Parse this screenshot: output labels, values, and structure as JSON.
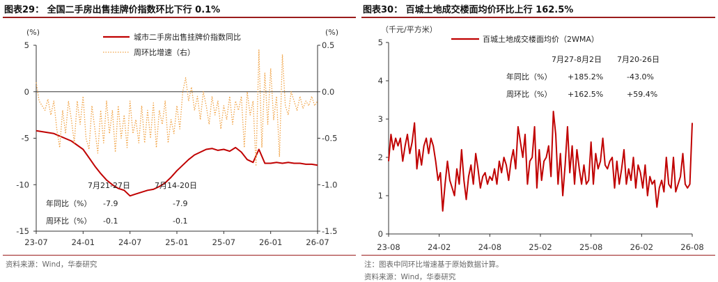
{
  "left_panel": {
    "title": "图表29：  全国二手房出售挂牌价指数环比下行 0.1%",
    "source": "资料来源：Wind，华泰研究"
  },
  "right_panel": {
    "title": "图表30：  百城土地成交楼面均价环比上行 162.5%",
    "note": "注：图表中同环比增速基于原始数据计算。",
    "source": "资料来源：Wind，华泰研究"
  },
  "chart_data": [
    {
      "type": "line",
      "x_ticks": [
        "23-07",
        "24-01",
        "24-07",
        "25-01",
        "25-07",
        "26-01",
        "26-07"
      ],
      "y_left_label": "(%)",
      "y_right_label": "(%)",
      "y_left_ticks": [
        "5",
        "0",
        "-5",
        "-10",
        "-15"
      ],
      "y_right_ticks": [
        "0.5",
        "0.0",
        "-0.5",
        "-1.0",
        "-1.5"
      ],
      "ylim_left": [
        -15,
        5
      ],
      "ylim_right": [
        -1.5,
        0.5
      ],
      "legend_position": "top-right",
      "series": [
        {
          "name": "城市二手房出售挂牌价指数同比",
          "axis": "left",
          "color": "#c00000",
          "style": "solid",
          "x": [
            0,
            6,
            12,
            16,
            18,
            20,
            22,
            24,
            26,
            28,
            30,
            32,
            34,
            36,
            38,
            40,
            42,
            44,
            46,
            48,
            50,
            52,
            54,
            56,
            58,
            60,
            62,
            64,
            66,
            68,
            70,
            72,
            74,
            76,
            78,
            80,
            82,
            84,
            86,
            88,
            90,
            92,
            94,
            96
          ],
          "values": [
            -4.2,
            -4.5,
            -5.3,
            -6.2,
            -7.1,
            -8.0,
            -8.8,
            -9.5,
            -10.0,
            -10.4,
            -10.6,
            -11.2,
            -11.0,
            -10.8,
            -10.6,
            -10.5,
            -10.2,
            -9.8,
            -9.2,
            -8.5,
            -7.9,
            -7.3,
            -6.8,
            -6.5,
            -6.2,
            -6.1,
            -6.3,
            -6.2,
            -6.4,
            -6.0,
            -6.5,
            -7.3,
            -7.6,
            -6.2,
            -7.7,
            -7.7,
            -7.6,
            -7.7,
            -7.6,
            -7.7,
            -7.7,
            -7.8,
            -7.8,
            -7.9
          ]
        },
        {
          "name": "周环比增速（右）",
          "axis": "right",
          "color": "#f0a040",
          "style": "dotted",
          "x": [
            0,
            1,
            2,
            3,
            4,
            5,
            6,
            7,
            8,
            9,
            10,
            11,
            12,
            13,
            14,
            15,
            16,
            17,
            18,
            19,
            20,
            21,
            22,
            23,
            24,
            25,
            26,
            27,
            28,
            29,
            30,
            31,
            32,
            33,
            34,
            35,
            36,
            37,
            38,
            39,
            40,
            41,
            42,
            43,
            44,
            45,
            46,
            47,
            48,
            49,
            50,
            51,
            52,
            53,
            54,
            55,
            56,
            57,
            58,
            59,
            60,
            61,
            62,
            63,
            64,
            65,
            66,
            67,
            68,
            69,
            70,
            71,
            72,
            73,
            74,
            75,
            76,
            77,
            78,
            79,
            80,
            81,
            82,
            83,
            84,
            85,
            86,
            87,
            88,
            89,
            90,
            91,
            92,
            93,
            94,
            95,
            96
          ],
          "values": [
            0.1,
            -0.1,
            -0.15,
            -0.2,
            -0.08,
            -0.25,
            -0.1,
            -0.4,
            -0.6,
            -0.2,
            -0.45,
            -0.1,
            -0.3,
            -0.55,
            -0.1,
            -0.35,
            -0.05,
            -0.5,
            -0.62,
            -0.15,
            -0.4,
            -0.66,
            -0.2,
            -0.55,
            -0.1,
            -0.45,
            -0.2,
            -0.65,
            -0.15,
            -0.5,
            -0.25,
            -0.6,
            -0.1,
            -0.45,
            -0.3,
            -0.55,
            -0.15,
            -0.55,
            -0.2,
            -0.5,
            -0.12,
            -0.6,
            -0.2,
            -0.35,
            -0.1,
            -0.55,
            -0.3,
            -0.45,
            -0.15,
            -0.4,
            0.0,
            0.15,
            -0.1,
            0.05,
            -0.2,
            -0.05,
            -0.3,
            0.0,
            -0.15,
            -0.35,
            -0.05,
            -0.25,
            -0.1,
            -0.4,
            -0.15,
            -0.3,
            -0.05,
            -0.35,
            -0.1,
            -0.2,
            -0.05,
            -0.6,
            0.0,
            -0.25,
            -0.1,
            -0.8,
            0.45,
            -0.6,
            0.2,
            -0.35,
            0.25,
            -0.3,
            -0.05,
            -0.7,
            0.4,
            -0.15,
            -0.25,
            0.0,
            -0.1,
            -0.2,
            -0.05,
            -0.18,
            -0.1,
            -0.15,
            -0.05,
            -0.15,
            -0.1
          ]
        }
      ],
      "annotation": {
        "headers": [
          "7月21-27日",
          "7月14-20日"
        ],
        "rows": [
          {
            "label": "年同比（%）",
            "values": [
              "-7.9",
              "-7.9"
            ]
          },
          {
            "label": "周环比（%）",
            "values": [
              "-0.1",
              "-0.1"
            ]
          }
        ]
      }
    },
    {
      "type": "line",
      "x_ticks": [
        "23-08",
        "24-02",
        "24-08",
        "25-02",
        "25-08",
        "26-02",
        "26-08"
      ],
      "y_label": "（千元/平方米）",
      "y_ticks": [
        "5",
        "4",
        "3",
        "2",
        "1",
        "0"
      ],
      "ylim": [
        0,
        5
      ],
      "legend_position": "top-center",
      "series": [
        {
          "name": "百城土地成交楼面均价（2WMA）",
          "color": "#c00000",
          "style": "solid",
          "values": [
            1.9,
            2.6,
            2.2,
            2.5,
            2.3,
            2.5,
            1.9,
            2.3,
            2.6,
            2.1,
            2.4,
            2.9,
            1.7,
            2.2,
            1.8,
            2.3,
            2.5,
            2.1,
            2.5,
            2.3,
            1.9,
            1.4,
            1.6,
            0.6,
            1.3,
            1.9,
            1.4,
            1.2,
            1.0,
            1.7,
            1.3,
            2.2,
            1.4,
            0.9,
            1.5,
            1.8,
            1.3,
            2.1,
            1.7,
            1.2,
            1.5,
            1.6,
            1.3,
            1.5,
            1.4,
            1.7,
            1.3,
            1.9,
            1.6,
            2.0,
            1.8,
            1.4,
            1.9,
            2.2,
            1.7,
            2.8,
            2.4,
            2.0,
            2.6,
            1.3,
            1.9,
            2.0,
            2.8,
            1.2,
            2.2,
            1.4,
            1.9,
            2.0,
            2.3,
            1.5,
            3.2,
            2.6,
            1.3,
            2.1,
            1.0,
            1.8,
            2.8,
            1.6,
            2.3,
            1.3,
            2.2,
            1.7,
            1.3,
            1.8,
            1.3,
            1.4,
            2.4,
            1.3,
            2.1,
            1.7,
            1.9,
            2.5,
            1.8,
            1.7,
            1.9,
            2.0,
            1.2,
            1.9,
            1.3,
            1.7,
            2.2,
            1.3,
            1.7,
            1.4,
            2.0,
            1.2,
            1.8,
            1.6,
            1.2,
            1.8,
            1.0,
            1.5,
            1.3,
            1.4,
            0.7,
            1.2,
            1.4,
            1.1,
            2.0,
            1.3,
            1.2,
            2.0,
            1.1,
            1.3,
            1.5,
            2.1,
            1.3,
            1.2,
            1.3,
            2.9
          ]
        }
      ],
      "annotation": {
        "headers": [
          "7月27-8月2日",
          "7月20-26日"
        ],
        "rows": [
          {
            "label": "年同比（%）",
            "values": [
              "+185.2%",
              "-43.0%"
            ]
          },
          {
            "label": "周环比（%）",
            "values": [
              "+162.5%",
              "+59.4%"
            ]
          }
        ]
      }
    }
  ]
}
